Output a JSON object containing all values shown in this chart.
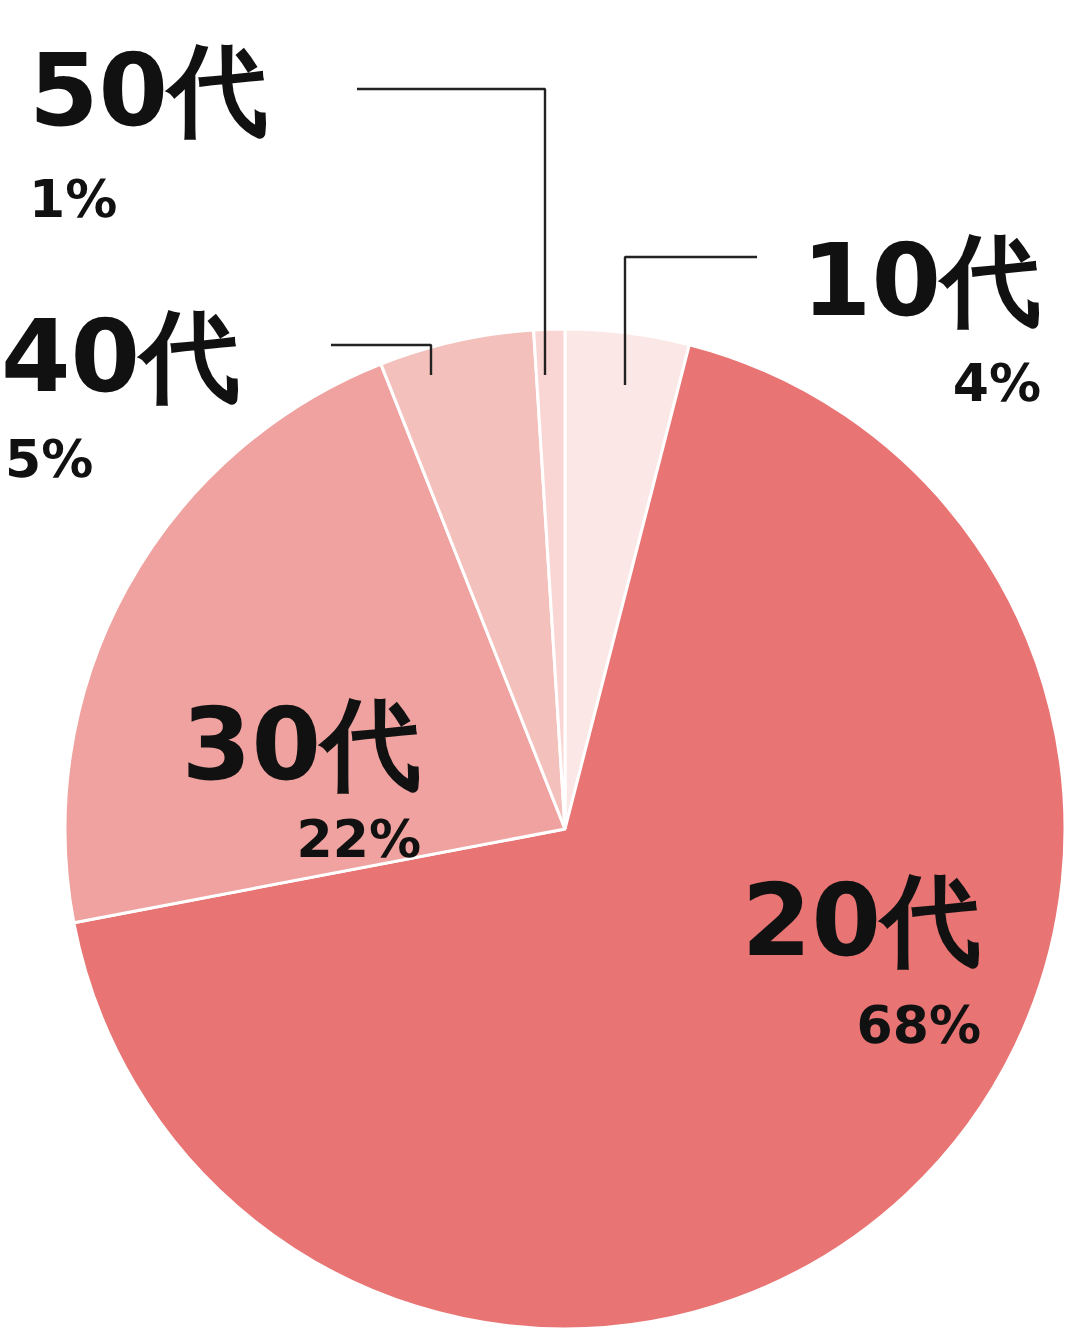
{
  "chart_data": {
    "type": "pie",
    "categories": [
      "10代",
      "20代",
      "30代",
      "40代",
      "50代"
    ],
    "values": [
      4,
      68,
      22,
      5,
      1
    ],
    "value_labels": [
      "4%",
      "68%",
      "22%",
      "5%",
      "1%"
    ],
    "colors": [
      "#fbe7e5",
      "#e87474",
      "#efa29f",
      "#f4c0bc",
      "#f9d6d3"
    ]
  }
}
